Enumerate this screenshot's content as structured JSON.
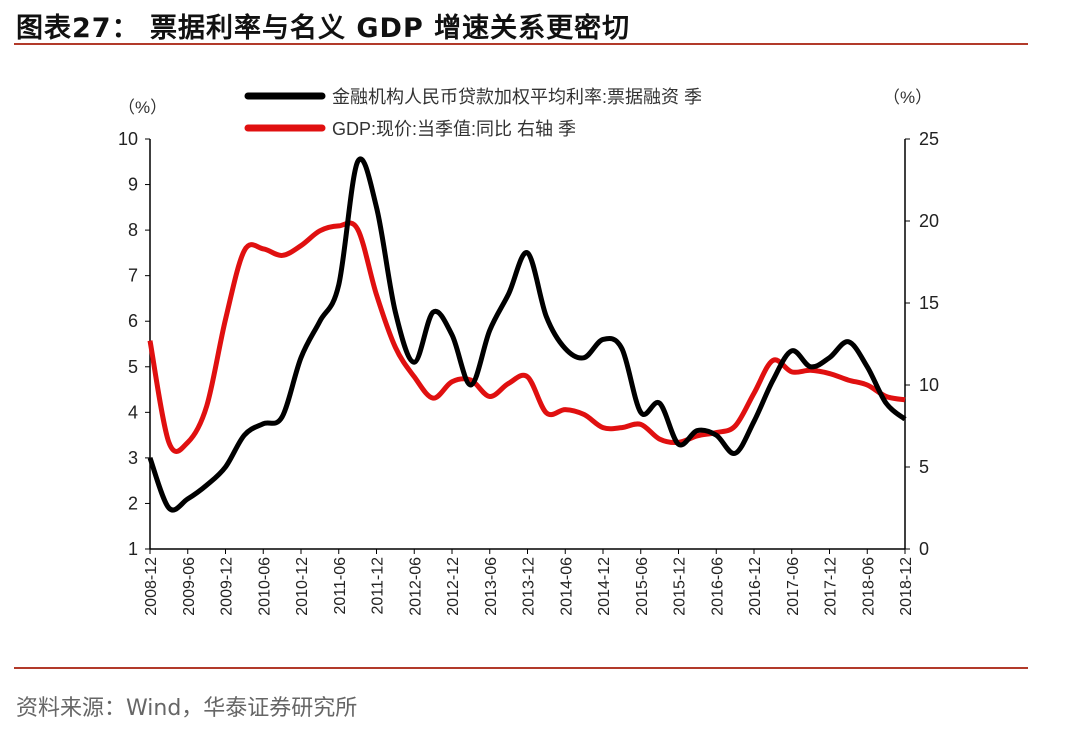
{
  "title": "图表27：  票据利率与名义 GDP 增速关系更密切",
  "source": "资料来源：Wind，华泰证券研究所",
  "chart_data": {
    "type": "line",
    "left_unit": "（%）",
    "right_unit": "（%）",
    "y_left": {
      "range": [
        1,
        10
      ],
      "ticks": [
        1,
        2,
        3,
        4,
        5,
        6,
        7,
        8,
        9,
        10
      ]
    },
    "y_right": {
      "range": [
        0,
        25
      ],
      "ticks": [
        0,
        5,
        10,
        15,
        20,
        25
      ]
    },
    "x_tick_labels": [
      "2008-12",
      "2009-06",
      "2009-12",
      "2010-06",
      "2010-12",
      "2011-06",
      "2011-12",
      "2012-06",
      "2012-12",
      "2013-06",
      "2013-12",
      "2014-06",
      "2014-12",
      "2015-06",
      "2015-12",
      "2016-06",
      "2016-12",
      "2017-06",
      "2017-12",
      "2018-06",
      "2018-12"
    ],
    "x": [
      "2008-12",
      "2009-03",
      "2009-06",
      "2009-09",
      "2009-12",
      "2010-03",
      "2010-06",
      "2010-09",
      "2010-12",
      "2011-03",
      "2011-06",
      "2011-09",
      "2011-12",
      "2012-03",
      "2012-06",
      "2012-09",
      "2012-12",
      "2013-03",
      "2013-06",
      "2013-09",
      "2013-12",
      "2014-03",
      "2014-06",
      "2014-09",
      "2014-12",
      "2015-03",
      "2015-06",
      "2015-09",
      "2015-12",
      "2016-03",
      "2016-06",
      "2016-09",
      "2016-12",
      "2017-03",
      "2017-06",
      "2017-09",
      "2017-12",
      "2018-03",
      "2018-06",
      "2018-09",
      "2018-12"
    ],
    "series": [
      {
        "name": "金融机构人民币贷款加权平均利率:票据融资 季",
        "axis": "left",
        "color": "#000000",
        "values": [
          3.0,
          1.9,
          2.1,
          2.4,
          2.8,
          3.5,
          3.75,
          3.9,
          5.2,
          6.0,
          6.8,
          9.5,
          8.5,
          6.2,
          5.1,
          6.2,
          5.7,
          4.6,
          5.8,
          6.6,
          7.5,
          6.1,
          5.4,
          5.2,
          5.6,
          5.4,
          4.0,
          4.2,
          3.3,
          3.6,
          3.5,
          3.1,
          3.8,
          4.7,
          5.35,
          5.0,
          5.2,
          5.55,
          5.0,
          4.2,
          3.85
        ]
      },
      {
        "name": "GDP:现价:当季值:同比 右轴 季",
        "axis": "right",
        "color": "#e01010",
        "values": [
          12.7,
          6.5,
          6.5,
          8.7,
          14.0,
          18.2,
          18.3,
          17.9,
          18.5,
          19.4,
          19.7,
          19.5,
          15.5,
          12.3,
          10.5,
          9.2,
          10.2,
          10.3,
          9.3,
          10.1,
          10.5,
          8.3,
          8.5,
          8.2,
          7.4,
          7.4,
          7.6,
          6.7,
          6.5,
          6.9,
          7.1,
          7.5,
          9.5,
          11.5,
          10.8,
          10.9,
          10.7,
          10.3,
          10.0,
          9.3,
          9.1
        ]
      }
    ],
    "legend_placement": "top",
    "grid": false
  }
}
